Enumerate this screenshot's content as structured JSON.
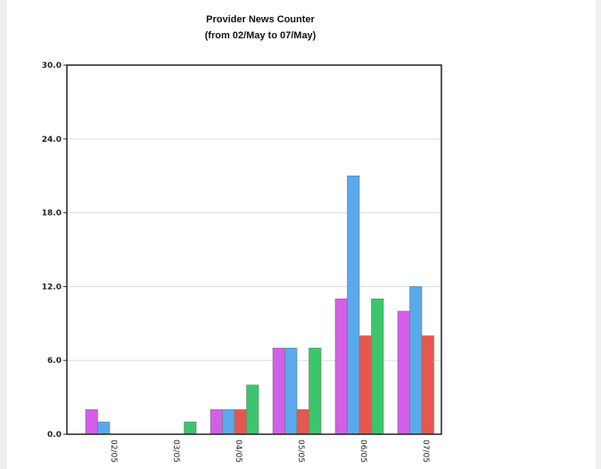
{
  "chart_data": {
    "type": "bar",
    "title": "Provider News Counter",
    "subtitle": "(from 02/May to  07/May)",
    "xlabel": "",
    "ylabel": "",
    "categories": [
      "02/05",
      "03/05",
      "04/05",
      "05/05",
      "06/05",
      "07/05"
    ],
    "ylim": [
      0,
      30
    ],
    "yticks": [
      "0.0",
      "6.0",
      "12.0",
      "18.0",
      "24.0",
      "30.0"
    ],
    "ytick_values": [
      0,
      6,
      12,
      18,
      24,
      30
    ],
    "grid": true,
    "legend": "none",
    "series": [
      {
        "color": "#d35ee8",
        "values": [
          2,
          0,
          2,
          7,
          11,
          10
        ]
      },
      {
        "color": "#5aa9ec",
        "values": [
          1,
          0,
          2,
          7,
          21,
          12
        ]
      },
      {
        "color": "#e8574f",
        "values": [
          0,
          0,
          2,
          2,
          8,
          8
        ]
      },
      {
        "color": "#3cc66b",
        "values": [
          0,
          1,
          4,
          7,
          11,
          0
        ]
      }
    ]
  }
}
